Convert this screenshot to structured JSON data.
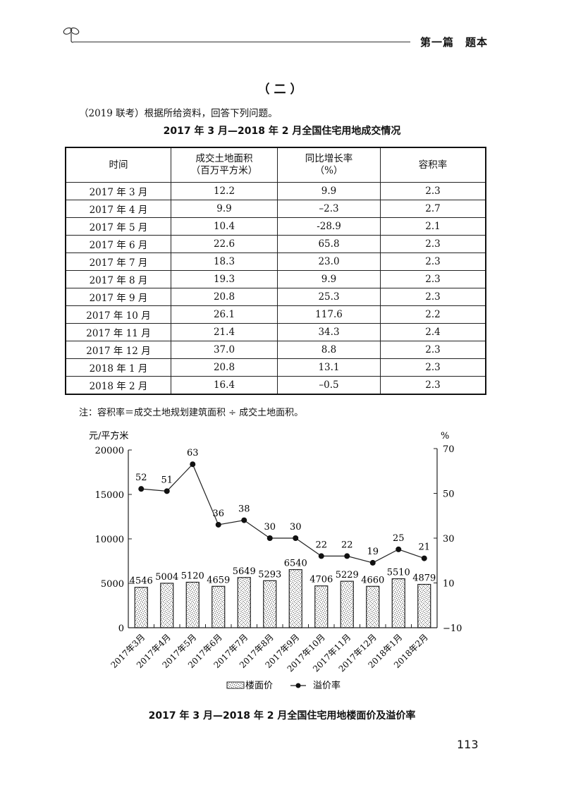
{
  "header": {
    "section_label": "第一篇　题本",
    "icon": "sprout-icon"
  },
  "section_title": "（二）",
  "intro": "（2019 联考）根据所给资料，回答下列问题。",
  "table": {
    "title": "2017 年 3 月—2018 年 2 月全国住宅用地成交情况",
    "columns": [
      "时间",
      "成交土地面积\n（百万平方米）",
      "同比增长率\n（%）",
      "容积率"
    ],
    "col1_line1": "成交土地面积",
    "col1_line2": "（百万平方米）",
    "col2_line1": "同比增长率",
    "col2_line2": "（%）",
    "rows": [
      [
        "2017 年 3 月",
        "12.2",
        "9.9",
        "2.3"
      ],
      [
        "2017 年 4 月",
        "9.9",
        "–2.3",
        "2.7"
      ],
      [
        "2017 年 5 月",
        "10.4",
        "-28.9",
        "2.1"
      ],
      [
        "2017 年 6 月",
        "22.6",
        "65.8",
        "2.3"
      ],
      [
        "2017 年 7 月",
        "18.3",
        "23.0",
        "2.3"
      ],
      [
        "2017 年 8 月",
        "19.3",
        "9.9",
        "2.3"
      ],
      [
        "2017 年 9 月",
        "20.8",
        "25.3",
        "2.3"
      ],
      [
        "2017 年 10 月",
        "26.1",
        "117.6",
        "2.2"
      ],
      [
        "2017 年 11 月",
        "21.4",
        "34.3",
        "2.4"
      ],
      [
        "2017 年 12 月",
        "37.0",
        "8.8",
        "2.3"
      ],
      [
        "2018 年 1 月",
        "20.8",
        "13.1",
        "2.3"
      ],
      [
        "2018 年 2 月",
        "16.4",
        "–0.5",
        "2.3"
      ]
    ],
    "note": "注：容积率＝成交土地规划建筑面积 ÷ 成交土地面积。"
  },
  "chart_data": {
    "type": "bar+line",
    "title": "2017 年 3 月—2018 年 2 月全国住宅用地楼面价及溢价率",
    "categories": [
      "2017年3月",
      "2017年4月",
      "2017年5月",
      "2017年6月",
      "2017年7月",
      "2017年8月",
      "2017年9月",
      "2017年10月",
      "2017年11月",
      "2017年12月",
      "2018年1月",
      "2018年2月"
    ],
    "series": [
      {
        "name": "楼面价",
        "type": "bar",
        "axis": "left",
        "values": [
          4546,
          5004,
          5120,
          4659,
          5649,
          5293,
          6540,
          4706,
          5229,
          4660,
          5510,
          4879
        ]
      },
      {
        "name": "溢价率",
        "type": "line",
        "axis": "right",
        "values": [
          52,
          51,
          63,
          36,
          38,
          30,
          30,
          22,
          22,
          19,
          25,
          21
        ]
      }
    ],
    "ylabel_left": "元/平方米",
    "ylabel_right": "%",
    "ylim_left": [
      0,
      20000
    ],
    "yticks_left": [
      "0",
      "5000",
      "10000",
      "15000",
      "20000"
    ],
    "ylim_right": [
      -10,
      70
    ],
    "yticks_right": [
      "-10",
      "10",
      "30",
      "50",
      "70"
    ],
    "legend": [
      "楼面价",
      "溢价率"
    ],
    "legend_position": "bottom",
    "grid": false
  },
  "page_number": "113"
}
